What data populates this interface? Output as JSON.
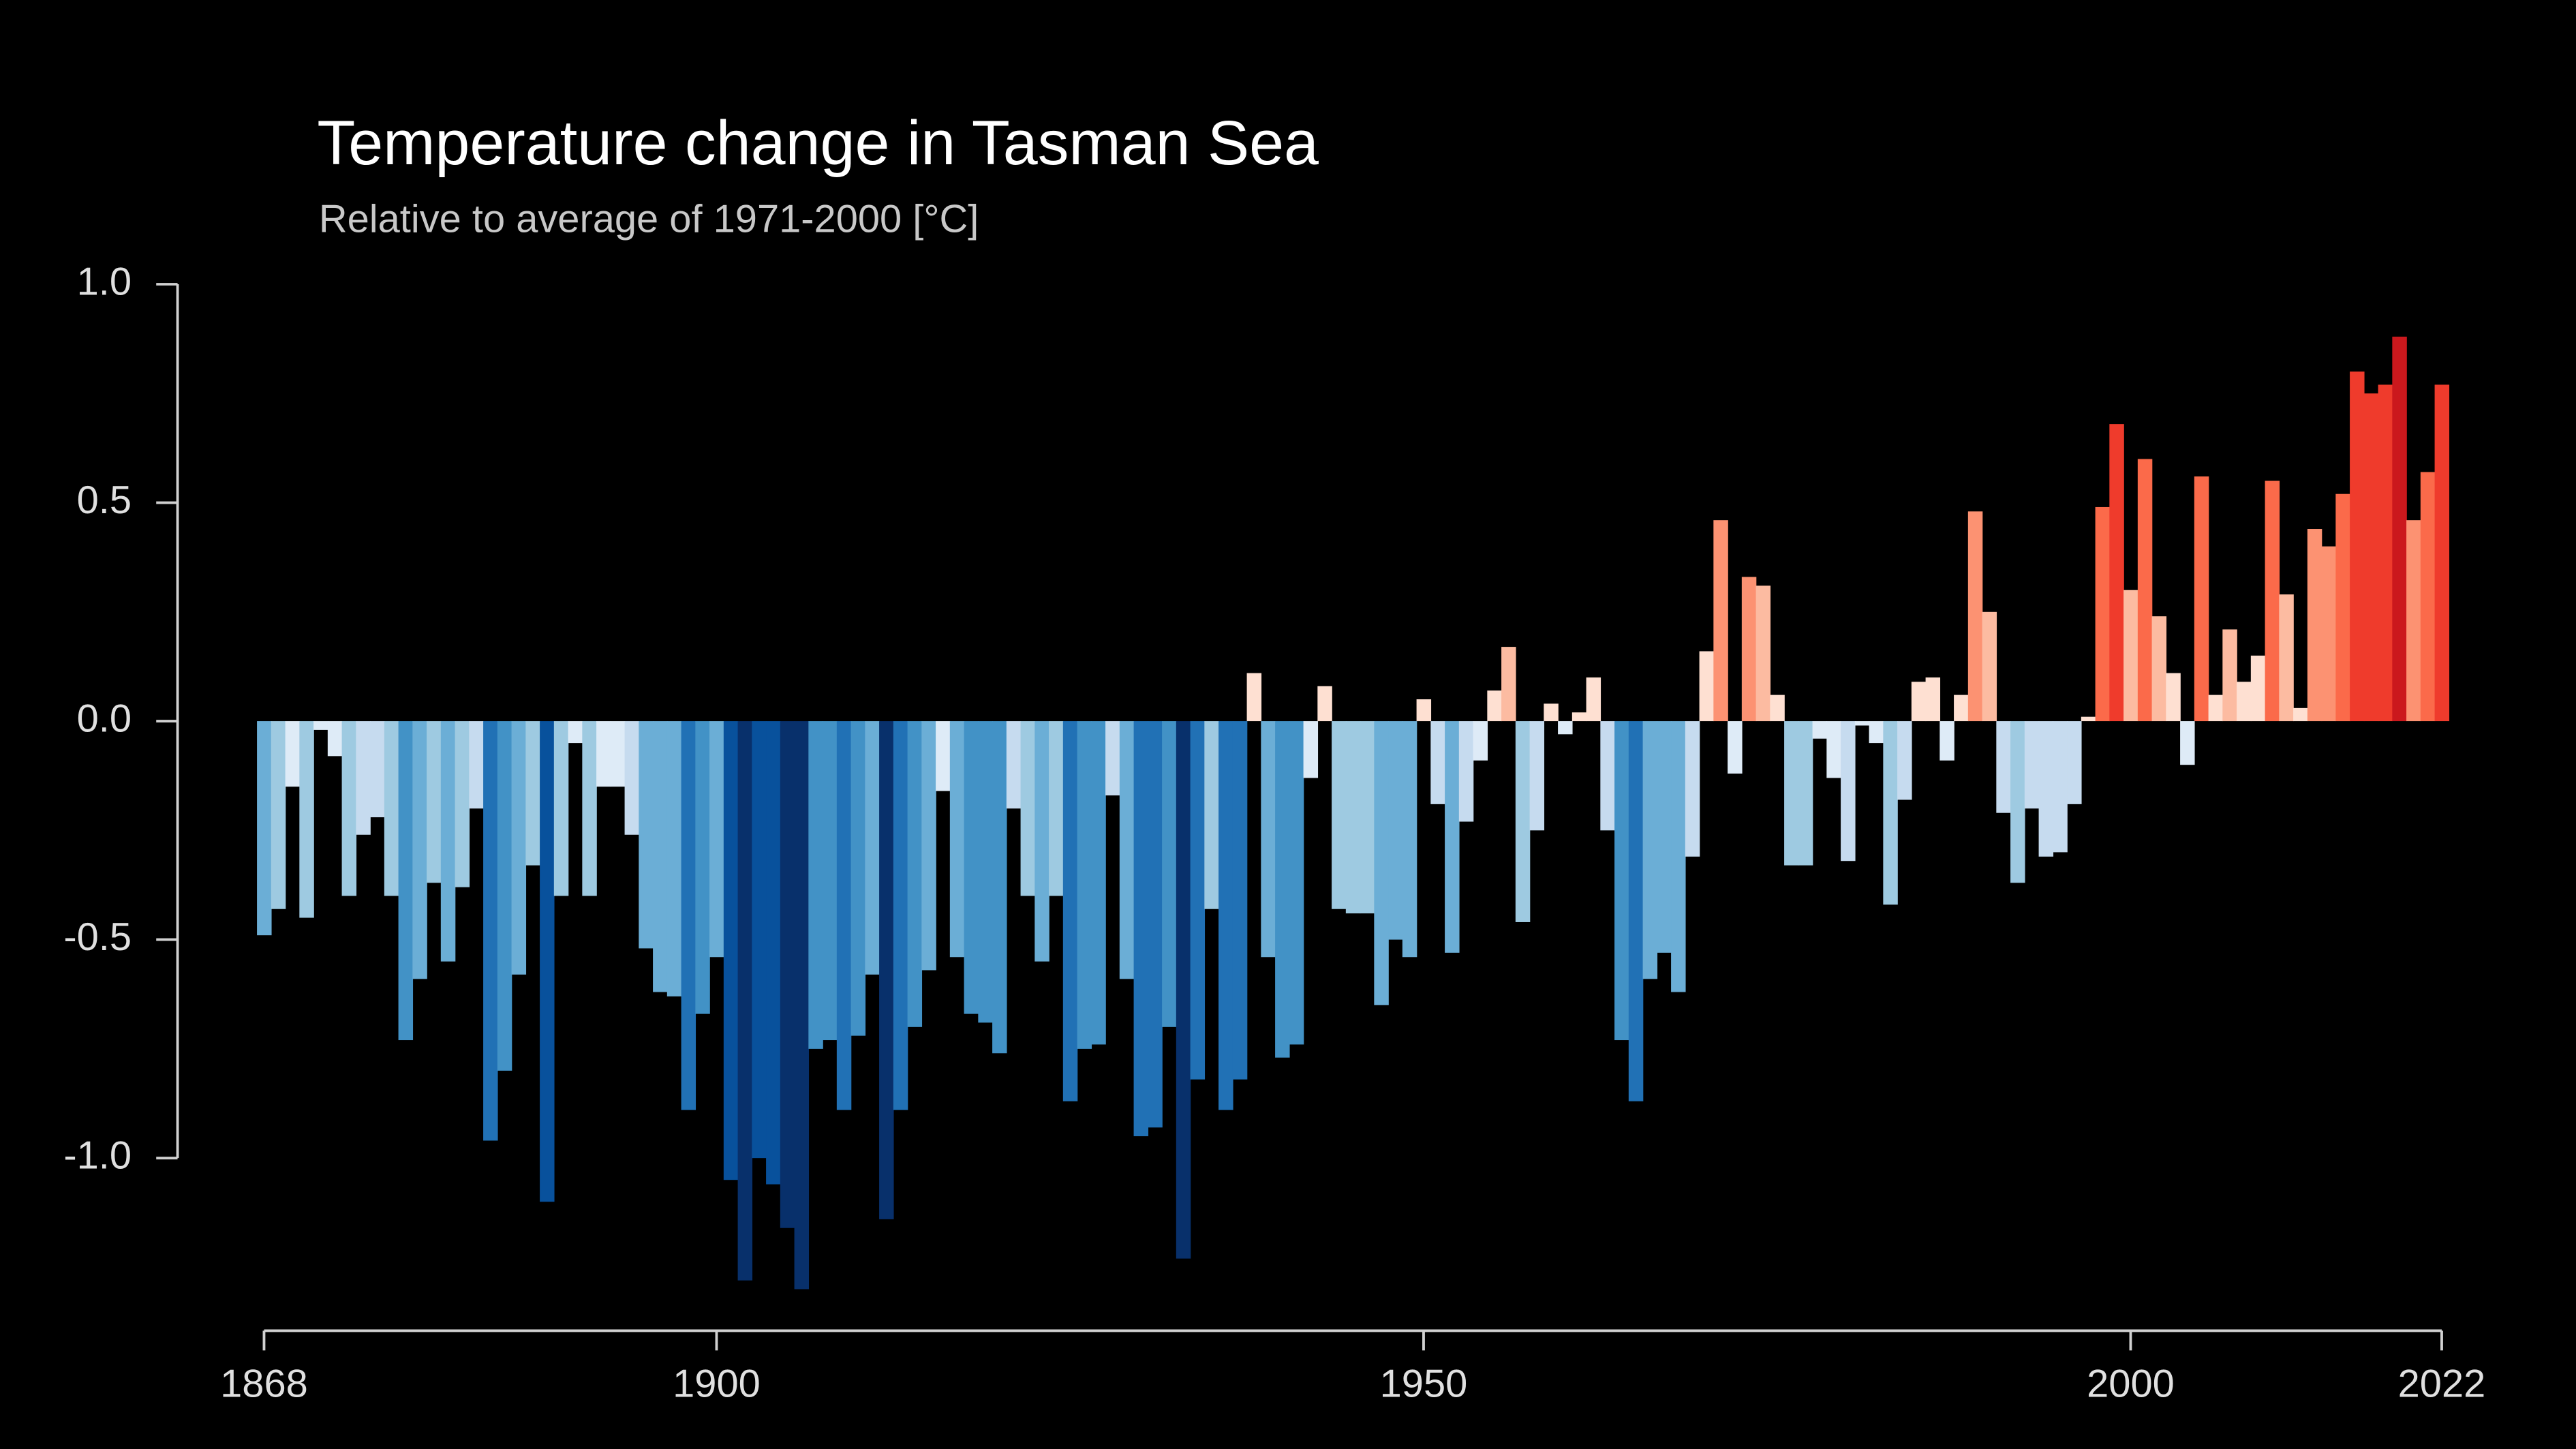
{
  "chart_data": {
    "type": "bar",
    "title": "Temperature change in Tasman Sea",
    "subtitle": "Relative to average of 1971-2000  [°C]",
    "x": [
      1868,
      1869,
      1870,
      1871,
      1872,
      1873,
      1874,
      1875,
      1876,
      1877,
      1878,
      1879,
      1880,
      1881,
      1882,
      1883,
      1884,
      1885,
      1886,
      1887,
      1888,
      1889,
      1890,
      1891,
      1892,
      1893,
      1894,
      1895,
      1896,
      1897,
      1898,
      1899,
      1900,
      1901,
      1902,
      1903,
      1904,
      1905,
      1906,
      1907,
      1908,
      1909,
      1910,
      1911,
      1912,
      1913,
      1914,
      1915,
      1916,
      1917,
      1918,
      1919,
      1920,
      1921,
      1922,
      1923,
      1924,
      1925,
      1926,
      1927,
      1928,
      1929,
      1930,
      1931,
      1932,
      1933,
      1934,
      1935,
      1936,
      1937,
      1938,
      1939,
      1940,
      1941,
      1942,
      1943,
      1944,
      1945,
      1946,
      1947,
      1948,
      1949,
      1950,
      1951,
      1952,
      1953,
      1954,
      1955,
      1956,
      1957,
      1958,
      1959,
      1960,
      1961,
      1962,
      1963,
      1964,
      1965,
      1966,
      1967,
      1968,
      1969,
      1970,
      1971,
      1972,
      1973,
      1974,
      1975,
      1976,
      1977,
      1978,
      1979,
      1980,
      1981,
      1982,
      1983,
      1984,
      1985,
      1986,
      1987,
      1988,
      1989,
      1990,
      1991,
      1992,
      1993,
      1994,
      1995,
      1996,
      1997,
      1998,
      1999,
      2000,
      2001,
      2002,
      2003,
      2004,
      2005,
      2006,
      2007,
      2008,
      2009,
      2010,
      2011,
      2012,
      2013,
      2014,
      2015,
      2016,
      2017,
      2018,
      2019,
      2020,
      2021,
      2022
    ],
    "values": [
      -0.49,
      -0.43,
      -0.15,
      -0.45,
      -0.02,
      -0.08,
      -0.4,
      -0.26,
      -0.22,
      -0.4,
      -0.73,
      -0.59,
      -0.37,
      -0.55,
      -0.38,
      -0.2,
      -0.96,
      -0.8,
      -0.58,
      -0.33,
      -1.1,
      -0.4,
      -0.05,
      -0.4,
      -0.15,
      -0.15,
      -0.26,
      -0.52,
      -0.62,
      -0.63,
      -0.89,
      -0.67,
      -0.54,
      -1.05,
      -1.28,
      -1.0,
      -1.06,
      -1.16,
      -1.3,
      -0.75,
      -0.73,
      -0.89,
      -0.72,
      -0.58,
      -1.14,
      -0.89,
      -0.7,
      -0.57,
      -0.16,
      -0.54,
      -0.67,
      -0.69,
      -0.76,
      -0.2,
      -0.4,
      -0.55,
      -0.4,
      -0.87,
      -0.75,
      -0.74,
      -0.17,
      -0.59,
      -0.95,
      -0.93,
      -0.7,
      -1.23,
      -0.82,
      -0.43,
      -0.89,
      -0.82,
      0.11,
      -0.54,
      -0.77,
      -0.74,
      -0.13,
      0.08,
      -0.43,
      -0.44,
      -0.44,
      -0.65,
      -0.5,
      -0.54,
      0.05,
      -0.19,
      -0.53,
      -0.23,
      -0.09,
      0.07,
      0.17,
      -0.46,
      -0.25,
      0.04,
      -0.03,
      0.02,
      0.1,
      -0.25,
      -0.73,
      -0.87,
      -0.59,
      -0.53,
      -0.62,
      -0.31,
      0.16,
      0.46,
      -0.12,
      0.33,
      0.31,
      0.06,
      -0.33,
      -0.33,
      -0.04,
      -0.13,
      -0.32,
      -0.01,
      -0.05,
      -0.42,
      -0.18,
      0.09,
      0.1,
      -0.09,
      0.06,
      0.48,
      0.25,
      -0.21,
      -0.37,
      -0.2,
      -0.31,
      -0.3,
      -0.19,
      0.01,
      0.49,
      0.68,
      0.3,
      0.6,
      0.24,
      0.11,
      -0.1,
      0.56,
      0.06,
      0.21,
      0.09,
      0.15,
      0.55,
      0.29,
      0.03,
      0.44,
      0.4,
      0.52,
      0.8,
      0.75,
      0.77,
      0.88,
      0.46,
      0.57,
      0.77
    ],
    "colormap": [
      "#08306b",
      "#08519c",
      "#2171b5",
      "#4292c6",
      "#6baed6",
      "#9ecae1",
      "#c6dbef",
      "#deebf7",
      "#fee0d2",
      "#fcbba1",
      "#fc9272",
      "#fb6a4a",
      "#ef3b2c",
      "#cb181d",
      "#a50f15",
      "#67000d"
    ],
    "xlim": [
      1862,
      2028
    ],
    "xticks": [
      1868,
      1900,
      1950,
      2000,
      2022
    ],
    "ylim": [
      -1.35,
      1.0
    ],
    "yticks": [
      {
        "value": -1.0,
        "label": "-1.0"
      },
      {
        "value": -0.5,
        "label": "-0.5"
      },
      {
        "value": 0,
        "label": "0.0"
      },
      {
        "value": 0.5,
        "label": "0.5"
      },
      {
        "value": 1.0,
        "label": "1.0"
      }
    ]
  }
}
